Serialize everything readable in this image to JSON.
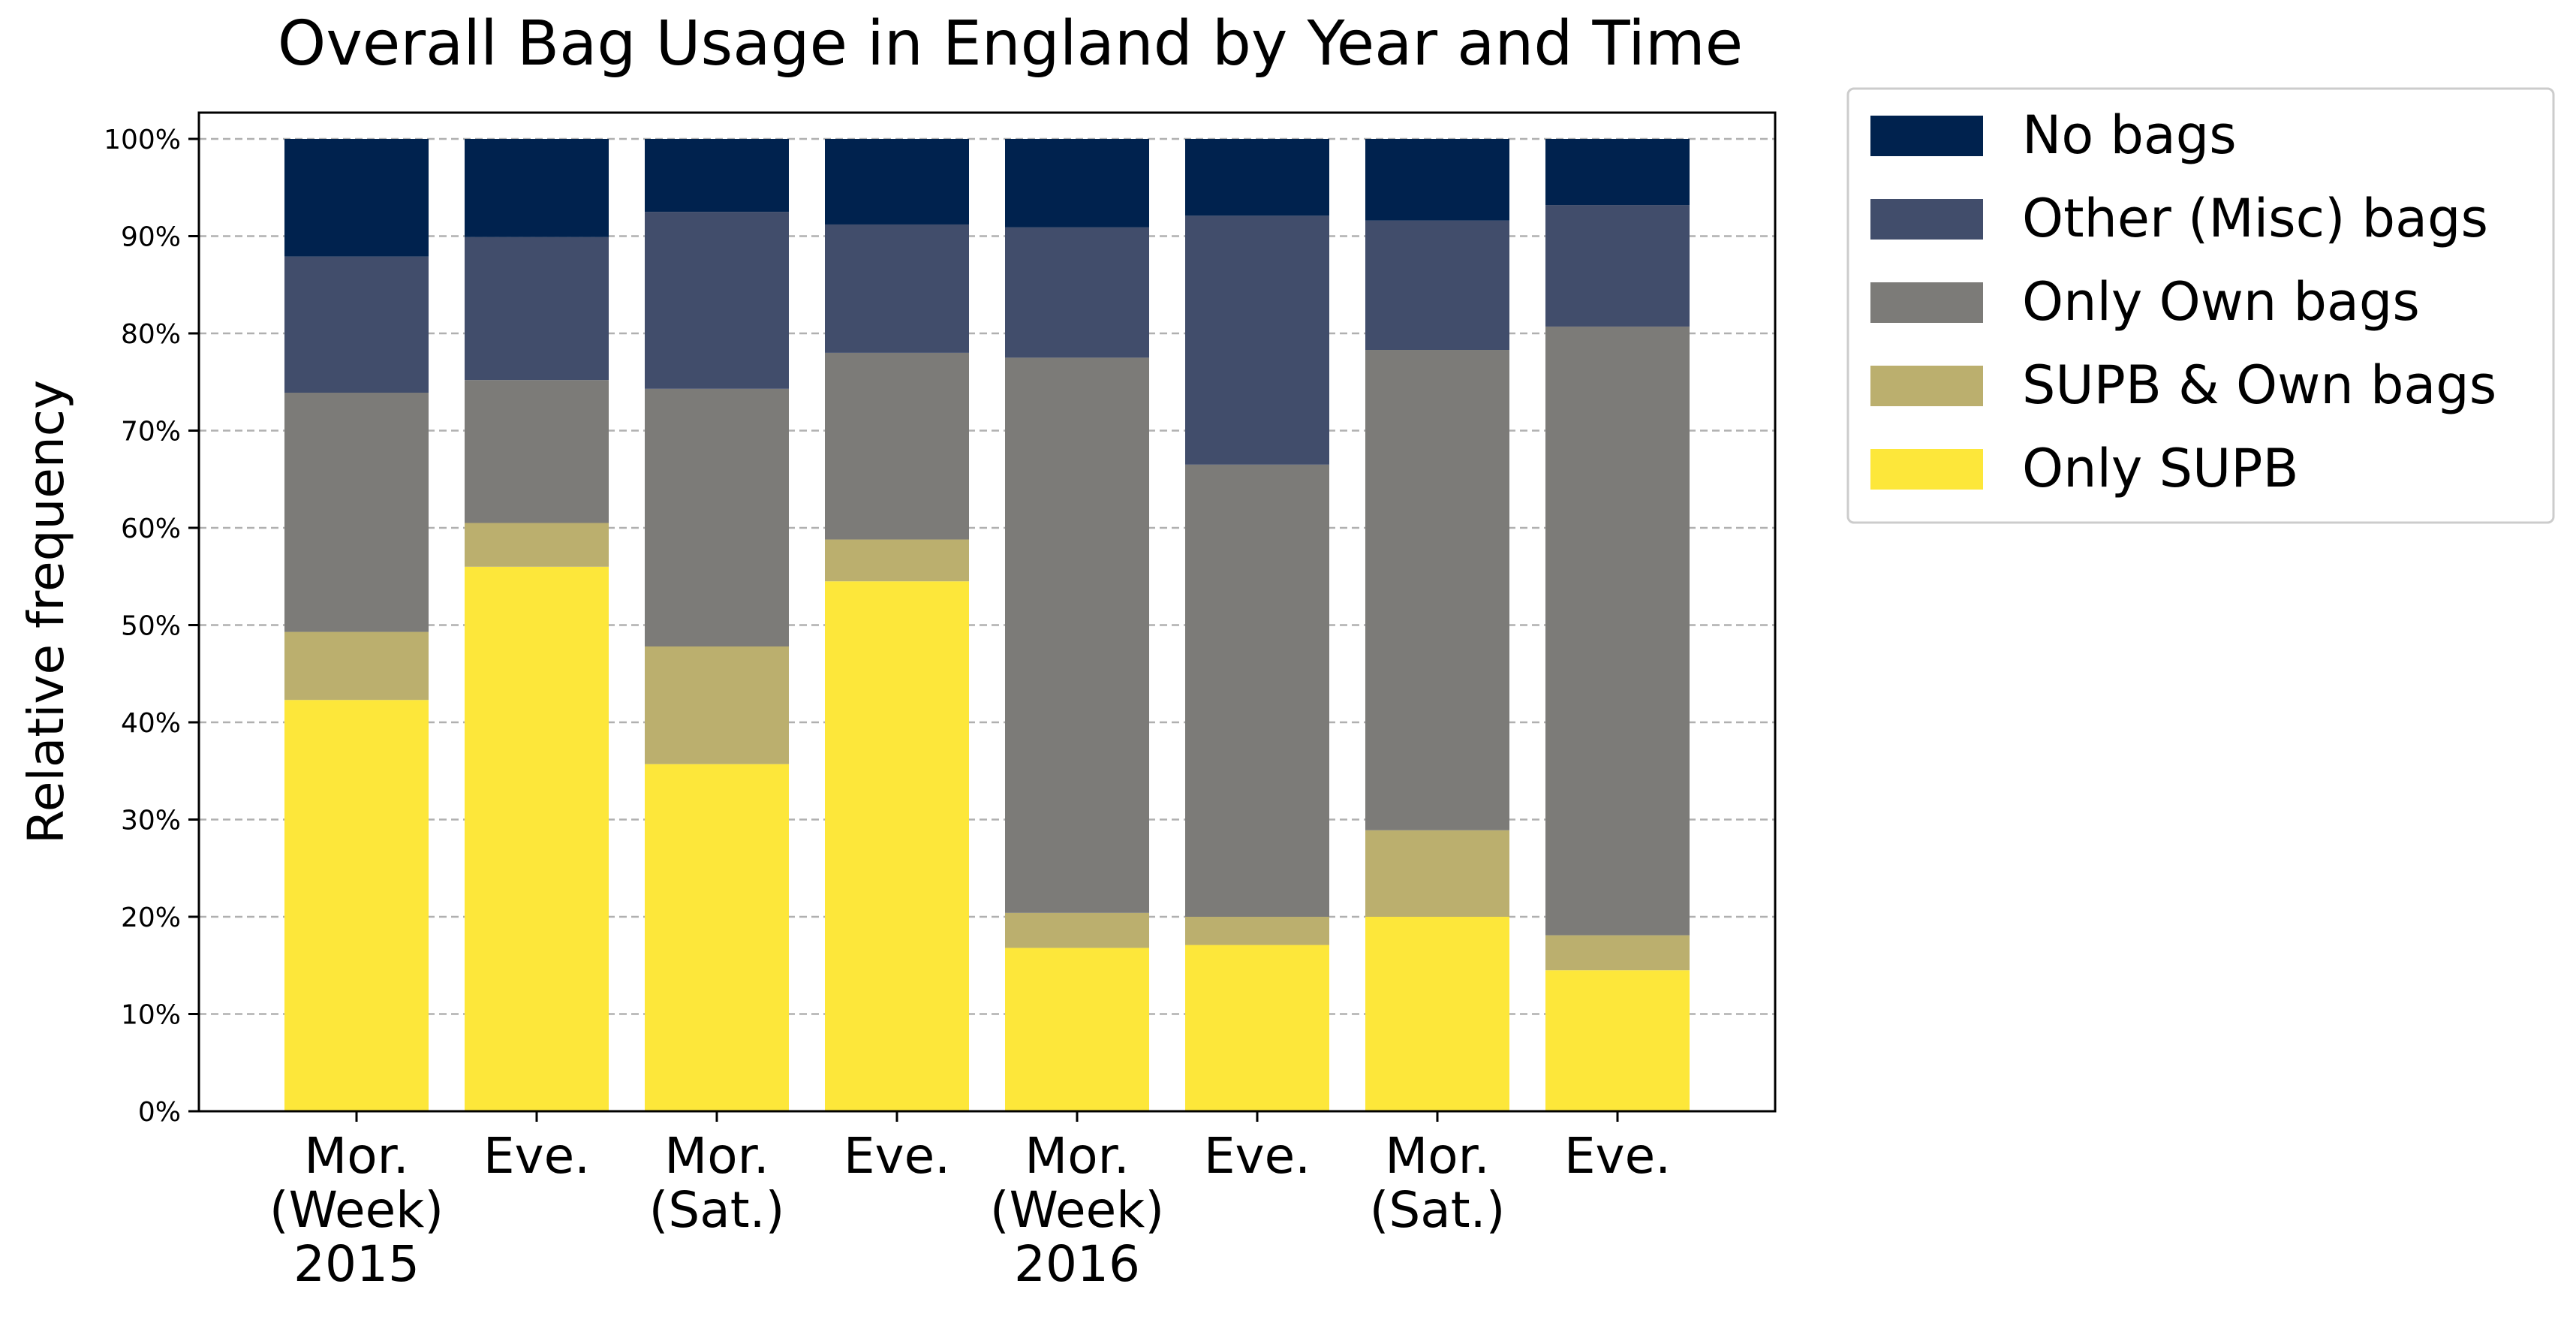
{
  "chart_data": {
    "type": "bar",
    "stacked": true,
    "title": "Overall Bag Usage in England by Year and Time",
    "ylabel": "Relative frequency",
    "xlabel": "",
    "ylim": [
      0,
      100
    ],
    "y_ticks": [
      "0%",
      "10%",
      "20%",
      "30%",
      "40%",
      "50%",
      "60%",
      "70%",
      "80%",
      "90%",
      "100%"
    ],
    "grid": "horizontal dashed",
    "legend_position": "outside top-right",
    "categories": [
      [
        "Mor.",
        "(Week)",
        "2015"
      ],
      [
        "Eve."
      ],
      [
        "Mor.",
        "(Sat.)"
      ],
      [
        "Eve."
      ],
      [
        "Mor.",
        "(Week)",
        "2016"
      ],
      [
        "Eve."
      ],
      [
        "Mor.",
        "(Sat.)"
      ],
      [
        "Eve."
      ]
    ],
    "series": [
      {
        "name": "Only SUPB",
        "color": "#fde73a",
        "values": [
          42.3,
          56.0,
          35.7,
          54.5,
          16.8,
          17.1,
          20.0,
          14.5
        ]
      },
      {
        "name": "SUPB & Own bags",
        "color": "#bbaf6e",
        "values": [
          7.0,
          4.5,
          12.1,
          4.3,
          3.6,
          2.9,
          8.9,
          3.6
        ]
      },
      {
        "name": "Only Own bags",
        "color": "#7c7b78",
        "values": [
          24.6,
          14.7,
          26.5,
          19.2,
          57.1,
          46.5,
          49.4,
          62.6
        ]
      },
      {
        "name": "Other (Misc) bags",
        "color": "#414d6b",
        "values": [
          14.0,
          14.7,
          18.2,
          13.2,
          13.4,
          25.6,
          13.3,
          12.5
        ]
      },
      {
        "name": "No bags",
        "color": "#00224e",
        "values": [
          12.1,
          10.1,
          7.5,
          8.8,
          9.1,
          7.9,
          8.4,
          6.8
        ]
      }
    ],
    "legend_order": [
      "No bags",
      "Other (Misc) bags",
      "Only Own bags",
      "SUPB & Own bags",
      "Only SUPB"
    ]
  }
}
